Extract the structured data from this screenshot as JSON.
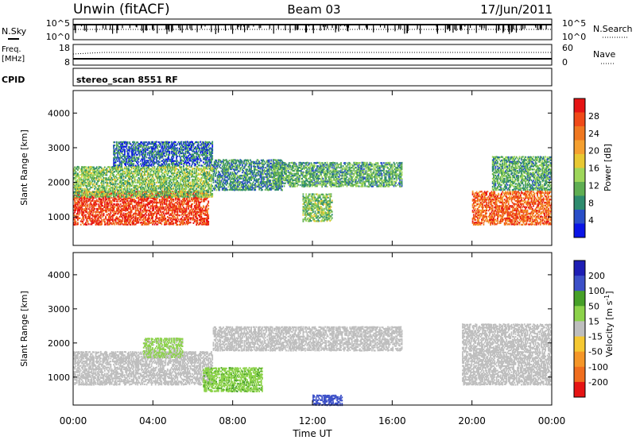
{
  "header": {
    "radar": "Unwin (fitACF)",
    "beam": "Beam 03",
    "date": "17/Jun/2011"
  },
  "strip_nsky": {
    "left_label": "N.Sky",
    "left_ticks": [
      "10^5",
      "10^0"
    ],
    "right_ticks": [
      "10^5",
      "10^0"
    ],
    "right_label": "N.Search"
  },
  "strip_freq": {
    "left_label_line1": "Freq.",
    "left_label_line2": "[MHz]",
    "left_ticks": [
      "18",
      "8"
    ],
    "right_ticks": [
      "60",
      "0"
    ],
    "right_label": "Nave"
  },
  "strip_cpid": {
    "left_label": "CPID",
    "text": "stereo_scan 8551 RF"
  },
  "colors": {
    "power_scale": [
      "#0a14e6",
      "#2a4fc8",
      "#2e8b6e",
      "#5fae52",
      "#9ed65a",
      "#e8c832",
      "#f5a030",
      "#f07820",
      "#f04a18",
      "#e61414"
    ],
    "velocity_scale": [
      "#1e1eb4",
      "#3c50c8",
      "#46a028",
      "#8cd24a",
      "#bebebe",
      "#f5c832",
      "#f59628",
      "#f06e1e",
      "#e61414"
    ],
    "ground_scatter": "#bebebe"
  },
  "chart_data": [
    {
      "type": "heatmap",
      "panel": "power",
      "xlabel": "",
      "ylabel": "Slant Range [km]",
      "x_ticks": [
        "00:00",
        "04:00",
        "08:00",
        "12:00",
        "16:00",
        "20:00",
        "00:00"
      ],
      "y_ticks": [
        "1000",
        "2000",
        "3000",
        "4000"
      ],
      "xlim_hours": [
        0,
        24
      ],
      "ylim_km": [
        180,
        4650
      ],
      "colorbar": {
        "label": "Power [dB]",
        "ticks": [
          "28",
          "24",
          "20",
          "16",
          "12",
          "8",
          "4"
        ],
        "range": [
          0,
          30
        ]
      },
      "regions": [
        {
          "t": [
            0.0,
            6.8
          ],
          "r": [
            800,
            1800
          ],
          "level": 26,
          "desc": "E-region/near scatter band"
        },
        {
          "t": [
            0.0,
            7.0
          ],
          "r": [
            1600,
            2500
          ],
          "level": 12
        },
        {
          "t": [
            2.0,
            7.0
          ],
          "r": [
            2500,
            3200
          ],
          "level": 6
        },
        {
          "t": [
            7.0,
            10.5
          ],
          "r": [
            1800,
            2700
          ],
          "level": 8
        },
        {
          "t": [
            10.0,
            16.5
          ],
          "r": [
            1900,
            2600
          ],
          "level": 10
        },
        {
          "t": [
            11.5,
            13.0
          ],
          "r": [
            900,
            1700
          ],
          "level": 12
        },
        {
          "t": [
            20.0,
            24.0
          ],
          "r": [
            800,
            1800
          ],
          "level": 24
        },
        {
          "t": [
            21.0,
            24.0
          ],
          "r": [
            1800,
            2800
          ],
          "level": 10
        }
      ]
    },
    {
      "type": "heatmap",
      "panel": "velocity",
      "xlabel": "Time UT",
      "ylabel": "Slant Range [km]",
      "x_ticks": [
        "00:00",
        "04:00",
        "08:00",
        "12:00",
        "16:00",
        "20:00",
        "00:00"
      ],
      "y_ticks": [
        "1000",
        "2000",
        "3000",
        "4000"
      ],
      "xlim_hours": [
        0,
        24
      ],
      "ylim_km": [
        180,
        4650
      ],
      "colorbar": {
        "label": "Velocity [m s^-1]",
        "ticks": [
          "200",
          "100",
          "50",
          "15",
          "-15",
          "-50",
          "-100",
          "-200"
        ],
        "range": [
          -250,
          250
        ]
      },
      "regions": [
        {
          "t": [
            0.0,
            7.0
          ],
          "r": [
            800,
            1800
          ],
          "level": 0,
          "desc": "ground scatter"
        },
        {
          "t": [
            3.5,
            5.5
          ],
          "r": [
            1600,
            2200
          ],
          "level": -30
        },
        {
          "t": [
            6.5,
            9.5
          ],
          "r": [
            600,
            1300
          ],
          "level": -80
        },
        {
          "t": [
            7.0,
            16.5
          ],
          "r": [
            1800,
            2500
          ],
          "level": 0
        },
        {
          "t": [
            12.0,
            13.5
          ],
          "r": [
            200,
            500
          ],
          "level": -150
        },
        {
          "t": [
            19.5,
            24.0
          ],
          "r": [
            800,
            2600
          ],
          "level": 20
        }
      ]
    }
  ]
}
